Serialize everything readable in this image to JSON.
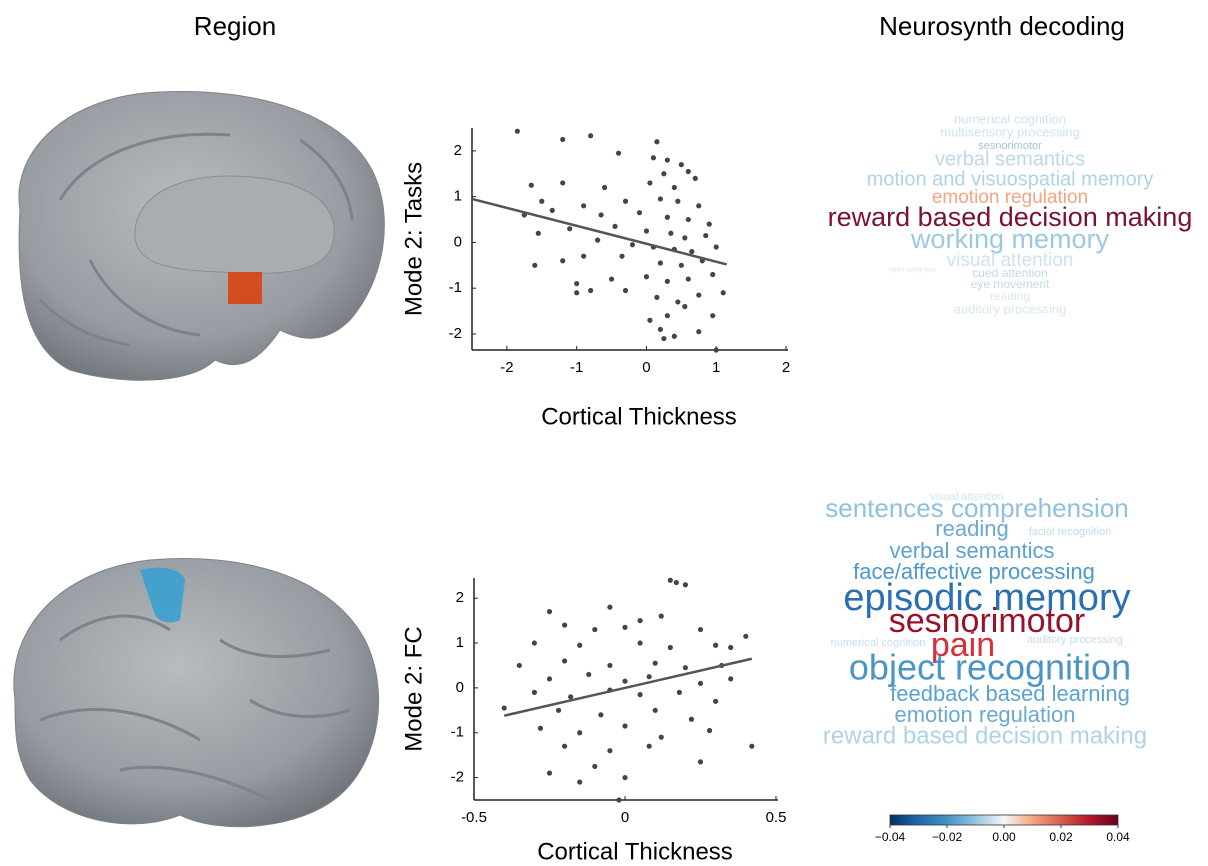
{
  "headers": {
    "region": "Region",
    "decoding": "Neurosynth decoding"
  },
  "chart_data": [
    {
      "type": "scatter",
      "ylabel": "Mode 2: Tasks",
      "xlabel": "Cortical Thickness",
      "color": "#454545",
      "xlim": [
        -2.5,
        2
      ],
      "xticks": [
        -2,
        -1,
        0,
        1,
        2
      ],
      "ylim": [
        -2.35,
        2.5
      ],
      "yticks": [
        -2,
        -1,
        0,
        1,
        2
      ],
      "x": [
        -1.85,
        -1.2,
        -0.8,
        0.15,
        -0.4,
        0.1,
        0.3,
        0.5,
        0.6,
        0.25,
        -1.65,
        -1.2,
        -0.6,
        0.05,
        0.4,
        0.7,
        -1.5,
        -0.9,
        -0.3,
        0.2,
        0.45,
        0.75,
        -1.75,
        -1.35,
        -0.65,
        -0.1,
        0.3,
        0.6,
        0.9,
        -1.55,
        -1.1,
        -0.45,
        0.0,
        0.35,
        0.55,
        0.85,
        -0.7,
        -0.2,
        0.1,
        0.4,
        0.65,
        1.0,
        -1.6,
        -1.2,
        -0.9,
        -0.35,
        0.2,
        0.5,
        0.8,
        -1.0,
        -0.5,
        0.0,
        0.3,
        0.6,
        0.95,
        -1.0,
        -0.3,
        0.15,
        0.45,
        0.75,
        1.1,
        -0.8,
        0.3,
        0.55,
        0.95,
        0.2,
        0.4,
        0.75,
        0.05,
        0.25,
        1.0
      ],
      "y": [
        2.43,
        2.25,
        2.33,
        2.2,
        1.95,
        1.85,
        1.8,
        1.7,
        1.55,
        1.5,
        1.25,
        1.3,
        1.2,
        1.3,
        1.2,
        1.4,
        0.9,
        0.8,
        0.9,
        0.95,
        0.9,
        0.8,
        0.6,
        0.7,
        0.6,
        0.65,
        0.55,
        0.5,
        0.4,
        0.2,
        0.3,
        0.35,
        0.25,
        0.2,
        0.1,
        0.15,
        0.05,
        -0.05,
        -0.1,
        -0.15,
        -0.2,
        -0.1,
        -0.5,
        -0.4,
        -0.3,
        -0.3,
        -0.45,
        -0.5,
        -0.4,
        -0.9,
        -0.8,
        -0.75,
        -0.85,
        -0.8,
        -0.7,
        -1.1,
        -1.05,
        -1.2,
        -1.3,
        -1.15,
        -1.1,
        -1.05,
        -1.6,
        -1.4,
        -1.6,
        -1.9,
        -2.05,
        -1.95,
        -1.7,
        -2.1,
        -2.35
      ],
      "fit": {
        "x": [
          -2.5,
          1.15
        ],
        "y": [
          0.95,
          -0.48
        ],
        "color": "#555555"
      }
    },
    {
      "type": "scatter",
      "ylabel": "Mode 2: FC",
      "xlabel": "Cortical Thickness",
      "color": "#454545",
      "xlim": [
        -0.5,
        0.5
      ],
      "xticks": [
        -0.5,
        0,
        0.5
      ],
      "ylim": [
        -2.5,
        2.45
      ],
      "yticks": [
        -2,
        -1,
        0,
        1,
        2
      ],
      "x": [
        0.15,
        0.2,
        0.17,
        -0.25,
        -0.05,
        0.05,
        0.12,
        -0.2,
        -0.1,
        0.0,
        0.25,
        0.4,
        -0.3,
        -0.15,
        0.05,
        0.15,
        0.3,
        -0.35,
        -0.2,
        -0.05,
        0.1,
        0.2,
        0.32,
        -0.25,
        -0.12,
        0.0,
        0.08,
        0.25,
        0.35,
        -0.3,
        -0.18,
        -0.05,
        0.05,
        0.18,
        0.3,
        -0.4,
        -0.22,
        -0.08,
        0.1,
        0.22,
        -0.28,
        -0.15,
        0.0,
        0.12,
        0.28,
        -0.2,
        -0.05,
        0.08,
        0.25,
        -0.25,
        -0.1,
        0.0,
        -0.15,
        0.42,
        0.35,
        -0.02
      ],
      "y": [
        2.4,
        2.3,
        2.35,
        1.7,
        1.8,
        1.5,
        1.6,
        1.4,
        1.3,
        1.35,
        1.3,
        1.15,
        1.0,
        0.95,
        1.0,
        0.9,
        0.95,
        0.5,
        0.6,
        0.5,
        0.55,
        0.45,
        0.5,
        0.2,
        0.3,
        0.15,
        0.25,
        0.1,
        0.2,
        -0.1,
        -0.2,
        -0.05,
        -0.15,
        -0.1,
        -0.3,
        -0.45,
        -0.5,
        -0.6,
        -0.5,
        -0.7,
        -0.9,
        -1.0,
        -0.85,
        -1.1,
        -0.95,
        -1.3,
        -1.4,
        -1.3,
        -1.65,
        -1.9,
        -1.75,
        -2.0,
        -2.1,
        -1.3,
        0.9,
        -2.5
      ],
      "fit": {
        "x": [
          -0.4,
          0.42
        ],
        "y": [
          -0.62,
          0.65
        ],
        "color": "#555555"
      }
    },
    {
      "type": "wordcloud",
      "words": [
        {
          "text": "numerical cognition",
          "color": "#cfe3ef"
        },
        {
          "text": "multisensory processing",
          "color": "#cfe3ef"
        },
        {
          "text": "sesnorimotor",
          "color": "#a9c3d3"
        },
        {
          "text": "verbal semantics",
          "color": "#bcd9ea"
        },
        {
          "text": "motion and visuospatial memory",
          "color": "#b1d3e6"
        },
        {
          "text": "emotion regulation",
          "color": "#f4a582"
        },
        {
          "text": "reward based decision making",
          "color": "#7a1230"
        },
        {
          "text": "working memory",
          "color": "#9cc9e2"
        },
        {
          "text": "visual attention",
          "color": "#cde2ee"
        },
        {
          "text": "object recognition",
          "color": "#d8e6ee"
        },
        {
          "text": "cued attention",
          "color": "#c3d8e5"
        },
        {
          "text": "eye movement",
          "color": "#c3d8e5"
        },
        {
          "text": "reading",
          "color": "#dde8ef"
        },
        {
          "text": "auditory processing",
          "color": "#d8e6ee"
        }
      ]
    },
    {
      "type": "wordcloud",
      "words": [
        {
          "text": "visual attention",
          "color": "#d1e5f0"
        },
        {
          "text": "sentences comprehension",
          "color": "#8fc0de"
        },
        {
          "text": "reading",
          "color": "#6aa9d2"
        },
        {
          "text": "facial recognition",
          "color": "#c0dcec"
        },
        {
          "text": "verbal semantics",
          "color": "#5ba2cf"
        },
        {
          "text": "face/affective processing",
          "color": "#4d99cb"
        },
        {
          "text": "episodic memory",
          "color": "#2a6fb2"
        },
        {
          "text": "sesnorimotor",
          "color": "#99122b"
        },
        {
          "text": "numerical cognition",
          "color": "#c7def0"
        },
        {
          "text": "pain",
          "color": "#d6303a"
        },
        {
          "text": "auditory processing",
          "color": "#c7def0"
        },
        {
          "text": "object recognition",
          "color": "#4a95c7"
        },
        {
          "text": "feedback based learning",
          "color": "#5ba2cf"
        },
        {
          "text": "emotion regulation",
          "color": "#6aa9d2"
        },
        {
          "text": "reward based decision making",
          "color": "#afd2e7"
        }
      ]
    },
    {
      "type": "colorbar",
      "xlim": [
        -0.04,
        0.04
      ],
      "xticks": [
        {
          "value": -0.04,
          "label": "−0.04"
        },
        {
          "value": -0.02,
          "label": "−0.02"
        },
        {
          "value": 0,
          "label": "0.00"
        },
        {
          "value": 0.02,
          "label": "0.02"
        },
        {
          "value": 0.04,
          "label": "0.04"
        }
      ],
      "colors": [
        "#053061",
        "#2166ac",
        "#4393c3",
        "#92c5de",
        "#f7f7f7",
        "#f4a582",
        "#d6604d",
        "#b2182b",
        "#67001f"
      ]
    }
  ]
}
